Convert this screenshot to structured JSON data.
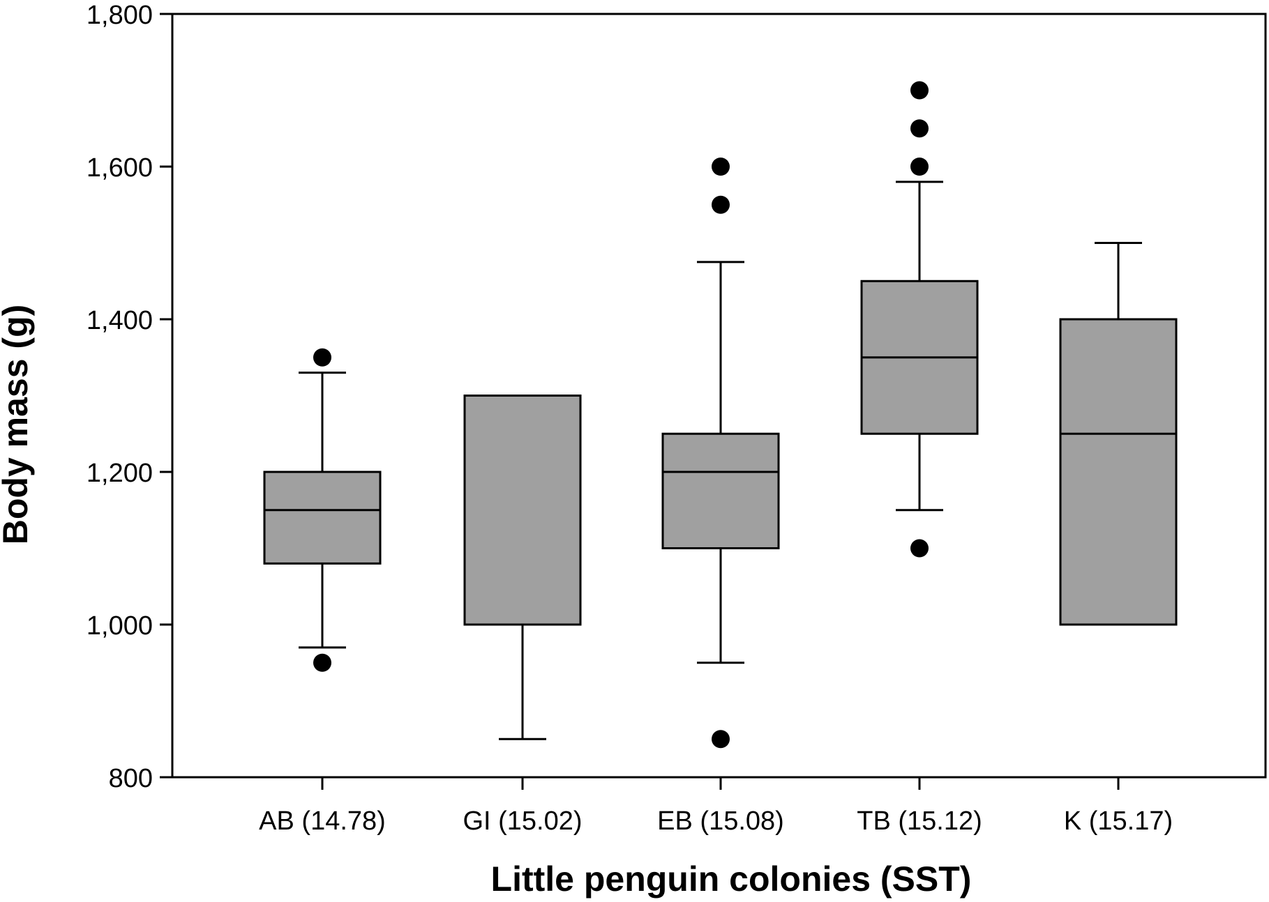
{
  "chart_data": {
    "type": "box",
    "title": "",
    "xlabel": "Little penguin colonies (SST)",
    "ylabel": "Body mass (g)",
    "ylim": [
      800,
      1800
    ],
    "yticks": [
      800,
      1000,
      1200,
      1400,
      1600,
      1800
    ],
    "ytick_labels": [
      "800",
      "1,000",
      "1,200",
      "1,400",
      "1,600",
      "1,800"
    ],
    "grid": false,
    "legend": "none",
    "box_fill": "#a0a0a0",
    "line_color": "#000000",
    "categories": [
      "AB (14.78)",
      "GI (15.02)",
      "EB (15.08)",
      "TB (15.12)",
      "K (15.17)"
    ],
    "boxes": [
      {
        "category": "AB (14.78)",
        "whisker_low": 970,
        "q1": 1080,
        "median": 1150,
        "q3": 1200,
        "whisker_high": 1330,
        "outliers": [
          950,
          1350
        ]
      },
      {
        "category": "GI (15.02)",
        "whisker_low": 850,
        "q1": 1000,
        "median": null,
        "q3": 1300,
        "whisker_high": null,
        "outliers": []
      },
      {
        "category": "EB (15.08)",
        "whisker_low": 950,
        "q1": 1100,
        "median": 1200,
        "q3": 1250,
        "whisker_high": 1475,
        "outliers": [
          850,
          1550,
          1600
        ]
      },
      {
        "category": "TB (15.12)",
        "whisker_low": 1150,
        "q1": 1250,
        "median": 1350,
        "q3": 1450,
        "whisker_high": 1580,
        "outliers": [
          1100,
          1600,
          1650,
          1700
        ]
      },
      {
        "category": "K (15.17)",
        "whisker_low": null,
        "q1": 1000,
        "median": 1250,
        "q3": 1400,
        "whisker_high": 1500,
        "outliers": []
      }
    ]
  }
}
